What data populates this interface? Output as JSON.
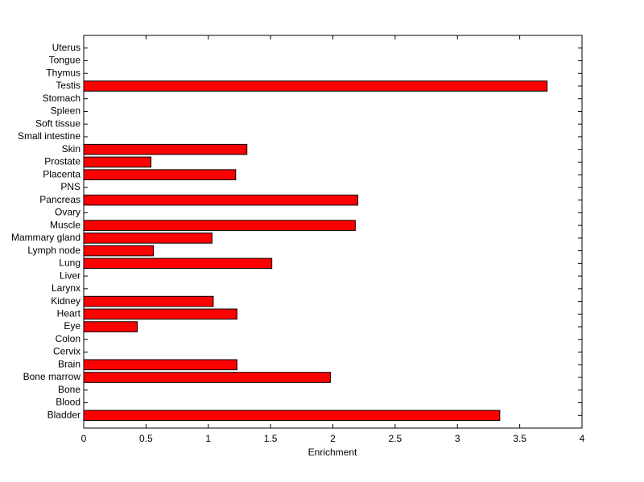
{
  "chart_data": {
    "type": "barh",
    "xlabel": "Enrichment",
    "categories": [
      "Bladder",
      "Blood",
      "Bone",
      "Bone marrow",
      "Brain",
      "Cervix",
      "Colon",
      "Eye",
      "Heart",
      "Kidney",
      "Larynx",
      "Liver",
      "Lung",
      "Lymph node",
      "Mammary gland",
      "Muscle",
      "Ovary",
      "Pancreas",
      "PNS",
      "Placenta",
      "Prostate",
      "Skin",
      "Small intestine",
      "Soft tissue",
      "Spleen",
      "Stomach",
      "Testis",
      "Thymus",
      "Tongue",
      "Uterus"
    ],
    "values": [
      3.34,
      0,
      0,
      1.98,
      1.23,
      0,
      0,
      0.43,
      1.23,
      1.04,
      0,
      0,
      1.51,
      0.56,
      1.03,
      2.18,
      0,
      2.2,
      0,
      1.22,
      0.54,
      1.31,
      0,
      0,
      0,
      0,
      3.72,
      0,
      0,
      0
    ],
    "color": "#ff0000",
    "xlim": [
      0,
      4
    ],
    "xticks": [
      0,
      0.5,
      1,
      1.5,
      2,
      2.5,
      3,
      3.5,
      4
    ]
  }
}
